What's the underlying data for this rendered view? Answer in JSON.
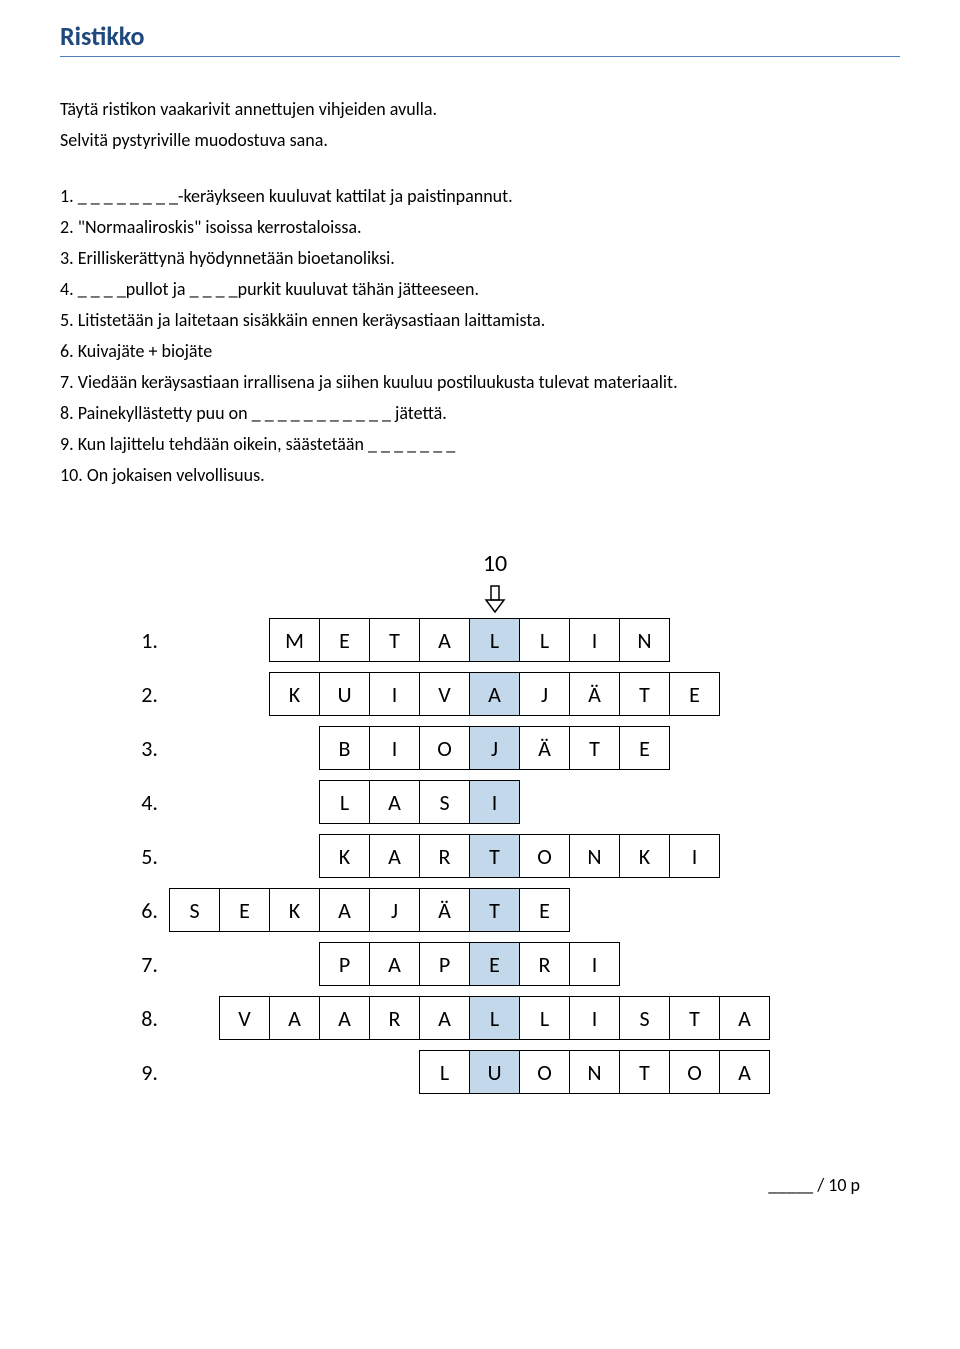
{
  "title": "Ristikko",
  "instructions": [
    "Täytä ristikon vaakarivit annettujen vihjeiden avulla.",
    "Selvitä pystyriville muodostuva sana."
  ],
  "clues": [
    "1.  _ _ _ _ _ _ _ _-keräykseen kuuluvat kattilat ja paistinpannut.",
    "2.  \"Normaaliroskis\" isoissa kerrostaloissa.",
    "3.  Erilliskerättynä hyödynnetään bioetanoliksi.",
    "4.  _ _ _ _pullot ja _ _ _ _purkit kuuluvat tähän jätteeseen.",
    "5.  Litistetään ja laitetaan sisäkkäin ennen keräysastiaan laittamista.",
    "6.  Kuivajäte + biojäte",
    "7.  Viedään keräysastiaan irrallisena ja siihen kuuluu postiluukusta tulevat materiaalit.",
    "8.  Painekyllästetty puu on _ _ _ _ _ _ _ _ _ _ _ jätettä.",
    "9.  Kun lajittelu tehdään oikein, säästetään _ _ _ _ _ _ _",
    "10.  On jokaisen velvollisuus."
  ],
  "vertical_label": "10",
  "highlight_col": 7,
  "rows": [
    {
      "num": "1.",
      "start": 3,
      "letters": [
        "M",
        "E",
        "T",
        "A",
        "L",
        "L",
        "I",
        "N"
      ]
    },
    {
      "num": "2.",
      "start": 3,
      "letters": [
        "K",
        "U",
        "I",
        "V",
        "A",
        "J",
        "Ä",
        "T",
        "E"
      ]
    },
    {
      "num": "3.",
      "start": 4,
      "letters": [
        "B",
        "I",
        "O",
        "J",
        "Ä",
        "T",
        "E"
      ]
    },
    {
      "num": "4.",
      "start": 4,
      "letters": [
        "L",
        "A",
        "S",
        "I"
      ]
    },
    {
      "num": "5.",
      "start": 4,
      "letters": [
        "K",
        "A",
        "R",
        "T",
        "O",
        "N",
        "K",
        "I"
      ]
    },
    {
      "num": "6.",
      "start": 1,
      "letters": [
        "S",
        "E",
        "K",
        "A",
        "J",
        "Ä",
        "T",
        "E"
      ]
    },
    {
      "num": "7.",
      "start": 4,
      "letters": [
        "P",
        "A",
        "P",
        "E",
        "R",
        "I"
      ]
    },
    {
      "num": "8.",
      "start": 2,
      "letters": [
        "V",
        "A",
        "A",
        "R",
        "A",
        "L",
        "L",
        "I",
        "S",
        "T",
        "A"
      ]
    },
    {
      "num": "9.",
      "start": 6,
      "letters": [
        "L",
        "U",
        "O",
        "N",
        "T",
        "O",
        "A"
      ]
    }
  ],
  "score_suffix": "/ 10 p",
  "colors": {
    "title": "#1f497d",
    "title_underline": "#4f81bd",
    "highlight": "#c3d8ea",
    "border": "#000000"
  }
}
